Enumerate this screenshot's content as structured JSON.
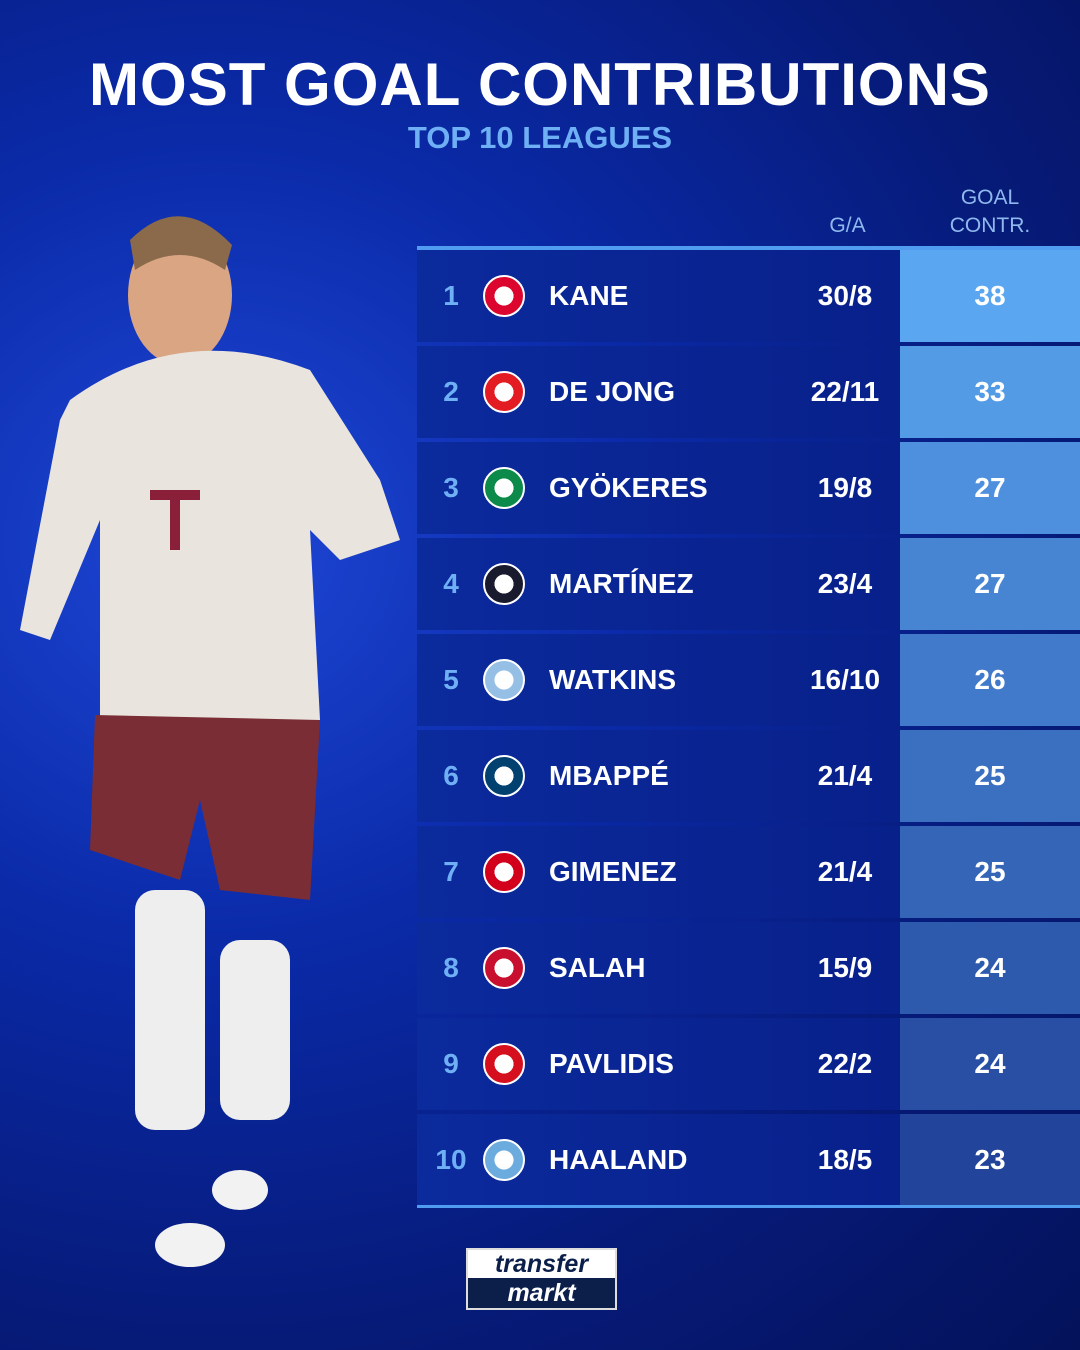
{
  "title": "MOST GOAL CONTRIBUTIONS",
  "subtitle": "TOP 10 LEAGUES",
  "chart_data": {
    "type": "table",
    "columns": [
      "G/A",
      "GOAL CONTR."
    ],
    "rows": [
      {
        "rank": "1",
        "club_logo": "fc-bayern-munchen-crest",
        "player": "KANE",
        "ga": "30/8",
        "goal_contr": 38,
        "logo_color": "#dc052d"
      },
      {
        "rank": "2",
        "club_logo": "psv-crest",
        "player": "DE JONG",
        "ga": "22/11",
        "goal_contr": 33,
        "logo_color": "#e31b23"
      },
      {
        "rank": "3",
        "club_logo": "sporting-cp-crest",
        "player": "GYÖKERES",
        "ga": "19/8",
        "goal_contr": 27,
        "logo_color": "#0c8a4a"
      },
      {
        "rank": "4",
        "club_logo": "inter-crest",
        "player": "MARTÍNEZ",
        "ga": "23/4",
        "goal_contr": 27,
        "logo_color": "#1a1a2e"
      },
      {
        "rank": "5",
        "club_logo": "aston-villa-crest",
        "player": "WATKINS",
        "ga": "16/10",
        "goal_contr": 26,
        "logo_color": "#95bfe5"
      },
      {
        "rank": "6",
        "club_logo": "psg-crest",
        "player": "MBAPPÉ",
        "ga": "21/4",
        "goal_contr": 25,
        "logo_color": "#004170"
      },
      {
        "rank": "7",
        "club_logo": "feyenoord-crest",
        "player": "GIMENEZ",
        "ga": "21/4",
        "goal_contr": 25,
        "logo_color": "#d2001a"
      },
      {
        "rank": "8",
        "club_logo": "liverpool-crest",
        "player": "SALAH",
        "ga": "15/9",
        "goal_contr": 24,
        "logo_color": "#c8102e"
      },
      {
        "rank": "9",
        "club_logo": "az-alkmaar-crest",
        "player": "PAVLIDIS",
        "ga": "22/2",
        "goal_contr": 24,
        "logo_color": "#d50f1e"
      },
      {
        "rank": "10",
        "club_logo": "manchester-city-crest",
        "player": "HAALAND",
        "ga": "18/5",
        "goal_contr": 23,
        "logo_color": "#6cabdd"
      }
    ]
  },
  "header": {
    "ga": "G/A",
    "contr_line1": "GOAL",
    "contr_line2": "CONTR."
  },
  "brand": {
    "line1": "transfer",
    "line2": "markt"
  },
  "colors": {
    "accent": "#4f9cf0",
    "contr_top": "#5aa6f0",
    "contr_bottom": "#22449a",
    "rank": "#6fb0f5"
  }
}
